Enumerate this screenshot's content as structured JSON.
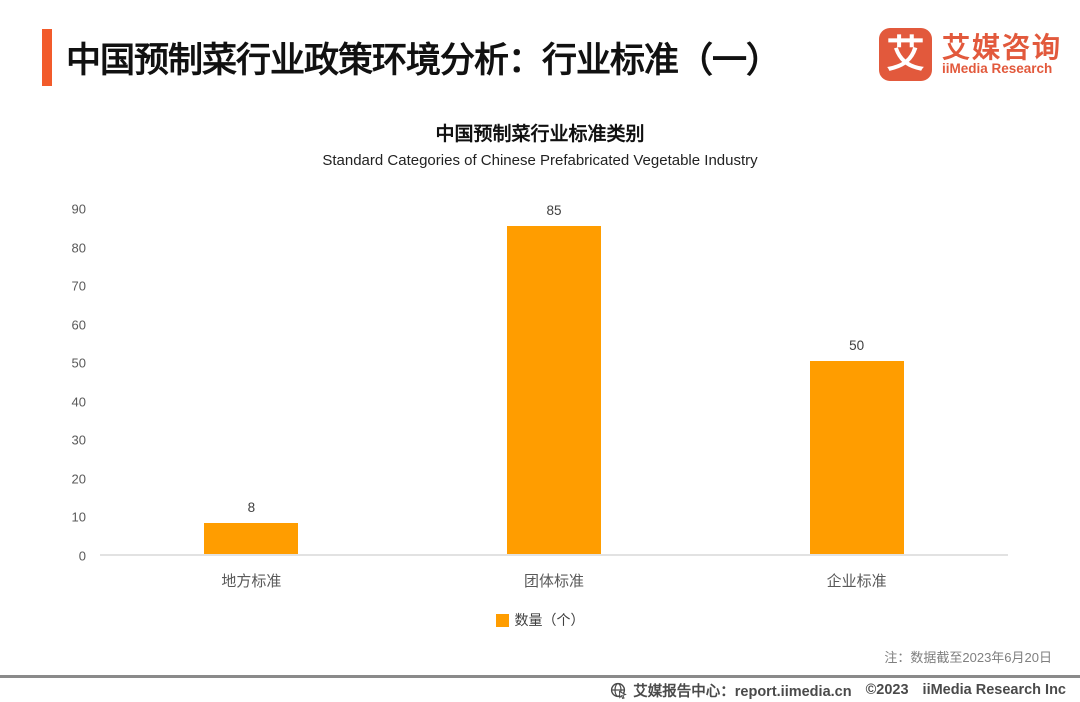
{
  "header": {
    "title": "中国预制菜行业政策环境分析：行业标准（一）",
    "accent_color": "#F25B2B",
    "logo": {
      "badge_glyph": "艾",
      "brand_cn": "艾媒咨询",
      "brand_en": "iiMedia Research",
      "brand_color": "#E2593C"
    }
  },
  "chart": {
    "title": "中国预制菜行业标准类别",
    "subtitle": "Standard Categories of Chinese Prefabricated Vegetable Industry"
  },
  "chart_data": {
    "type": "bar",
    "categories": [
      "地方标准",
      "团体标准",
      "企业标准"
    ],
    "series": [
      {
        "name": "数量（个）",
        "values": [
          8,
          85,
          50
        ]
      }
    ],
    "title": "中国预制菜行业标准类别",
    "subtitle": "Standard Categories of Chinese Prefabricated Vegetable Industry",
    "xlabel": "",
    "ylabel": "",
    "ylim": [
      0,
      90
    ],
    "ytick_step": 10,
    "bar_color": "#FF9D00",
    "grid": false,
    "legend_position": "bottom",
    "data_labels": true
  },
  "legend": {
    "label": "数量（个）",
    "swatch_color": "#FF9D00"
  },
  "note": "注：数据截至2023年6月20日",
  "footer": {
    "report_center": "艾媒报告中心：report.iimedia.cn",
    "copyright": "©2023",
    "company": "iiMedia Research Inc"
  }
}
